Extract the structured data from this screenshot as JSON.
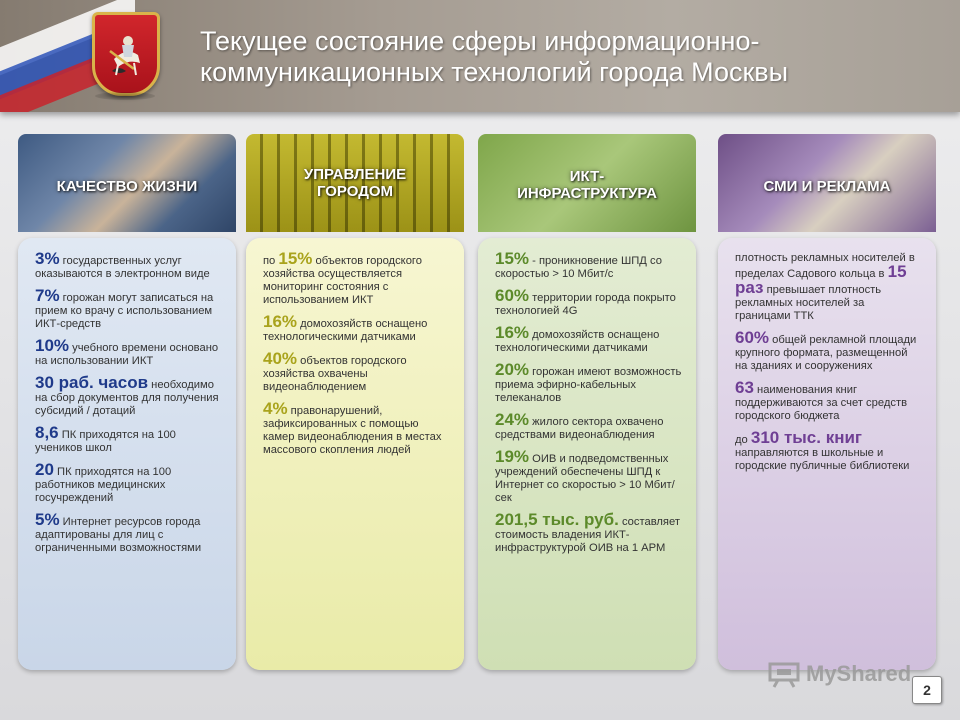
{
  "header": {
    "title_line1": "Текущее состояние сферы информационно-",
    "title_line2": "коммуникационных технологий города Москвы"
  },
  "columns": [
    {
      "heading": "КАЧЕСТВО ЖИЗНИ",
      "items": [
        {
          "value": "3%",
          "text": " государственных услуг оказываются в электронном виде"
        },
        {
          "value": "7%",
          "text": " горожан могут записаться на прием ко врачу с использованием ИКТ-средств"
        },
        {
          "value": "10%",
          "text": " учебного времени основано на использовании ИКТ"
        },
        {
          "value": "30 раб. часов",
          "text": " необходимо на сбор документов для получения субсидий / дотаций"
        },
        {
          "value": "8,6",
          "text": " ПК приходятся на 100 учеников школ"
        },
        {
          "value": "20",
          "text": " ПК приходятся на 100 работников медицинских госучреждений"
        },
        {
          "value": "5%",
          "text": " Интернет ресурсов города адаптированы для лиц с ограниченными возможностями"
        }
      ]
    },
    {
      "heading_line1": "УПРАВЛЕНИЕ",
      "heading_line2": "ГОРОДОМ",
      "items": [
        {
          "prefix": "по ",
          "value": "15%",
          "text": " объектов городского хозяйства осуществляется мониторинг состояния с использованием ИКТ"
        },
        {
          "value": "16%",
          "text": " домохозяйств оснащено технологическими датчиками"
        },
        {
          "value": "40%",
          "text": " объектов городского хозяйства охвачены видеонаблюдением"
        },
        {
          "value": "4%",
          "text": " правонарушений, зафиксированных с помощью камер видеонаблюдения в местах массового скопления людей"
        }
      ]
    },
    {
      "heading_line1": "ИКТ-",
      "heading_line2": "ИНФРАСТРУКТУРА",
      "items": [
        {
          "value": "15%",
          "text": " - проникновение ШПД со скоростью > 10 Мбит/с"
        },
        {
          "value": "60%",
          "text": " территории города покрыто технологией 4G"
        },
        {
          "value": "16%",
          "text": " домохозяйств оснащено технологическими датчиками"
        },
        {
          "value": "20%",
          "text": " горожан имеют возможность приема эфирно-кабельных телеканалов"
        },
        {
          "value": "24%",
          "text": " жилого сектора охвачено средствами видеонаблюдения"
        },
        {
          "value": "19%",
          "text": " ОИВ и подведомственных учреждений обеспечены ШПД к Интернет со скоростью > 10 Мбит/сек"
        },
        {
          "value": "201,5 тыс. руб.",
          "text": " составляет стоимость владения ИКТ-инфраструктурой ОИВ на 1 АРМ"
        }
      ]
    },
    {
      "heading": "СМИ И РЕКЛАМА",
      "items": [
        {
          "prefix": "плотность рекламных носителей в пределах Садового кольца в ",
          "value": "15 раз",
          "text": " превышает плотность рекламных носителей за границами ТТК"
        },
        {
          "value": "60%",
          "text": " общей рекламной площади крупного формата, размещенной на зданиях и сооружениях"
        },
        {
          "value": "63",
          "text": " наименования книг поддерживаются за счет средств городского бюджета"
        },
        {
          "prefix": "до ",
          "value": "310 тыс. книг",
          "text": " направляются в школьные и городские публичные библиотеки"
        }
      ]
    }
  ],
  "watermark": "MyShared",
  "page_number": "2",
  "colors": {
    "col1_accent": "#1f3a8a",
    "col2_accent": "#a9a31c",
    "col3_accent": "#5c8a2a",
    "col4_accent": "#6f3f94"
  },
  "icons": [
    "moscow-coat-of-arms-emblem",
    "russian-flag-icon",
    "presentation-board-icon"
  ]
}
